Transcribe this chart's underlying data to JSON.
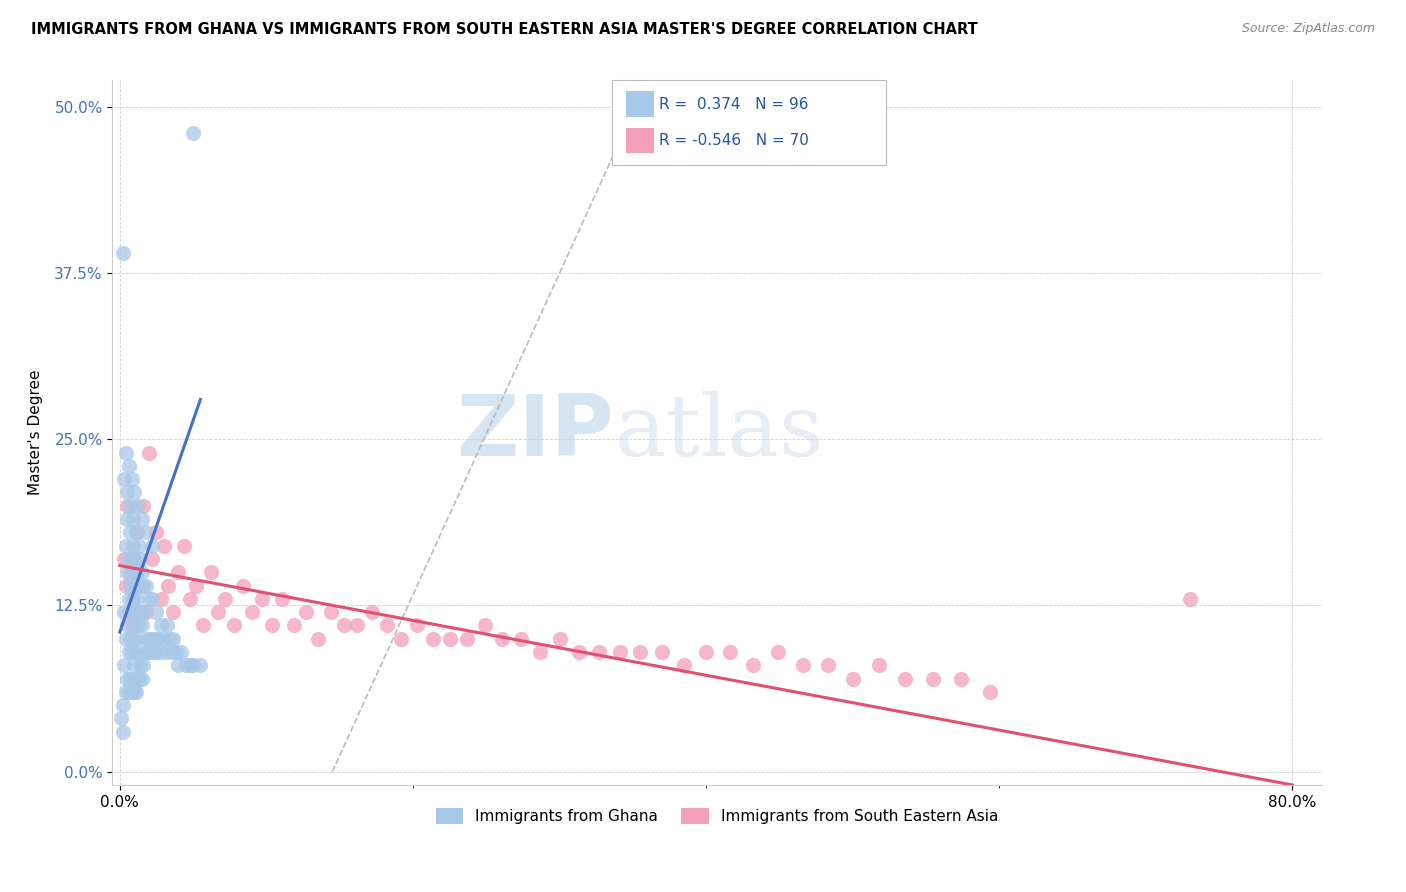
{
  "title": "IMMIGRANTS FROM GHANA VS IMMIGRANTS FROM SOUTH EASTERN ASIA MASTER'S DEGREE CORRELATION CHART",
  "source": "Source: ZipAtlas.com",
  "ylabel": "Master's Degree",
  "ytick_labels": [
    "0.0%",
    "12.5%",
    "25.0%",
    "37.5%",
    "50.0%"
  ],
  "ytick_values": [
    0.0,
    0.125,
    0.25,
    0.375,
    0.5
  ],
  "xtick_labels": [
    "0.0%",
    "",
    "",
    "",
    "80.0%"
  ],
  "xtick_values": [
    0.0,
    0.2,
    0.4,
    0.6,
    0.8
  ],
  "xlim": [
    -0.005,
    0.82
  ],
  "ylim": [
    -0.01,
    0.52
  ],
  "color_ghana": "#A8C8E8",
  "color_sea": "#F4A0B8",
  "color_ghana_line": "#4472C4",
  "color_sea_line": "#E05070",
  "color_diagonal": "#BBBBBB",
  "watermark_zip": "ZIP",
  "watermark_atlas": "atlas",
  "ghana_scatter_x": [
    0.002,
    0.003,
    0.003,
    0.004,
    0.004,
    0.005,
    0.005,
    0.005,
    0.006,
    0.006,
    0.006,
    0.007,
    0.007,
    0.007,
    0.008,
    0.008,
    0.008,
    0.009,
    0.009,
    0.009,
    0.01,
    0.01,
    0.01,
    0.01,
    0.011,
    0.011,
    0.011,
    0.012,
    0.012,
    0.012,
    0.013,
    0.013,
    0.014,
    0.014,
    0.015,
    0.015,
    0.016,
    0.016,
    0.017,
    0.018,
    0.019,
    0.02,
    0.021,
    0.022,
    0.023,
    0.024,
    0.025,
    0.026,
    0.028,
    0.03,
    0.032,
    0.034,
    0.036,
    0.038,
    0.04,
    0.042,
    0.045,
    0.048,
    0.05,
    0.055,
    0.004,
    0.005,
    0.006,
    0.007,
    0.008,
    0.009,
    0.01,
    0.011,
    0.012,
    0.013,
    0.014,
    0.015,
    0.016,
    0.018,
    0.02,
    0.022,
    0.025,
    0.028,
    0.032,
    0.036,
    0.003,
    0.004,
    0.005,
    0.006,
    0.007,
    0.008,
    0.009,
    0.01,
    0.012,
    0.015,
    0.018,
    0.022,
    0.001,
    0.002,
    0.05,
    0.002
  ],
  "ghana_scatter_y": [
    0.05,
    0.08,
    0.12,
    0.06,
    0.1,
    0.07,
    0.11,
    0.15,
    0.06,
    0.09,
    0.13,
    0.07,
    0.1,
    0.14,
    0.06,
    0.09,
    0.12,
    0.07,
    0.1,
    0.13,
    0.06,
    0.08,
    0.11,
    0.14,
    0.06,
    0.09,
    0.12,
    0.07,
    0.1,
    0.13,
    0.07,
    0.11,
    0.08,
    0.12,
    0.07,
    0.11,
    0.08,
    0.12,
    0.09,
    0.1,
    0.09,
    0.1,
    0.09,
    0.1,
    0.09,
    0.1,
    0.09,
    0.1,
    0.09,
    0.1,
    0.09,
    0.1,
    0.09,
    0.09,
    0.08,
    0.09,
    0.08,
    0.08,
    0.08,
    0.08,
    0.17,
    0.19,
    0.16,
    0.18,
    0.15,
    0.17,
    0.16,
    0.18,
    0.15,
    0.17,
    0.16,
    0.15,
    0.14,
    0.14,
    0.13,
    0.13,
    0.12,
    0.11,
    0.11,
    0.1,
    0.22,
    0.24,
    0.21,
    0.23,
    0.2,
    0.22,
    0.19,
    0.21,
    0.2,
    0.19,
    0.18,
    0.17,
    0.04,
    0.03,
    0.48,
    0.39
  ],
  "sea_scatter_x": [
    0.003,
    0.004,
    0.005,
    0.006,
    0.007,
    0.008,
    0.009,
    0.01,
    0.012,
    0.014,
    0.016,
    0.018,
    0.02,
    0.022,
    0.025,
    0.028,
    0.03,
    0.033,
    0.036,
    0.04,
    0.044,
    0.048,
    0.052,
    0.057,
    0.062,
    0.067,
    0.072,
    0.078,
    0.084,
    0.09,
    0.097,
    0.104,
    0.111,
    0.119,
    0.127,
    0.135,
    0.144,
    0.153,
    0.162,
    0.172,
    0.182,
    0.192,
    0.203,
    0.214,
    0.225,
    0.237,
    0.249,
    0.261,
    0.274,
    0.287,
    0.3,
    0.313,
    0.327,
    0.341,
    0.355,
    0.37,
    0.385,
    0.4,
    0.416,
    0.432,
    0.449,
    0.466,
    0.483,
    0.5,
    0.518,
    0.536,
    0.555,
    0.574,
    0.594,
    0.73
  ],
  "sea_scatter_y": [
    0.16,
    0.14,
    0.2,
    0.12,
    0.15,
    0.11,
    0.13,
    0.16,
    0.18,
    0.14,
    0.2,
    0.12,
    0.24,
    0.16,
    0.18,
    0.13,
    0.17,
    0.14,
    0.12,
    0.15,
    0.17,
    0.13,
    0.14,
    0.11,
    0.15,
    0.12,
    0.13,
    0.11,
    0.14,
    0.12,
    0.13,
    0.11,
    0.13,
    0.11,
    0.12,
    0.1,
    0.12,
    0.11,
    0.11,
    0.12,
    0.11,
    0.1,
    0.11,
    0.1,
    0.1,
    0.1,
    0.11,
    0.1,
    0.1,
    0.09,
    0.1,
    0.09,
    0.09,
    0.09,
    0.09,
    0.09,
    0.08,
    0.09,
    0.09,
    0.08,
    0.09,
    0.08,
    0.08,
    0.07,
    0.08,
    0.07,
    0.07,
    0.07,
    0.06,
    0.13
  ],
  "ghana_line_x": [
    0.0,
    0.055
  ],
  "ghana_line_y": [
    0.105,
    0.28
  ],
  "sea_line_x": [
    0.0,
    0.8
  ],
  "sea_line_y": [
    0.155,
    -0.01
  ],
  "diag_line_x": [
    0.145,
    0.36
  ],
  "diag_line_y": [
    0.0,
    0.52
  ]
}
